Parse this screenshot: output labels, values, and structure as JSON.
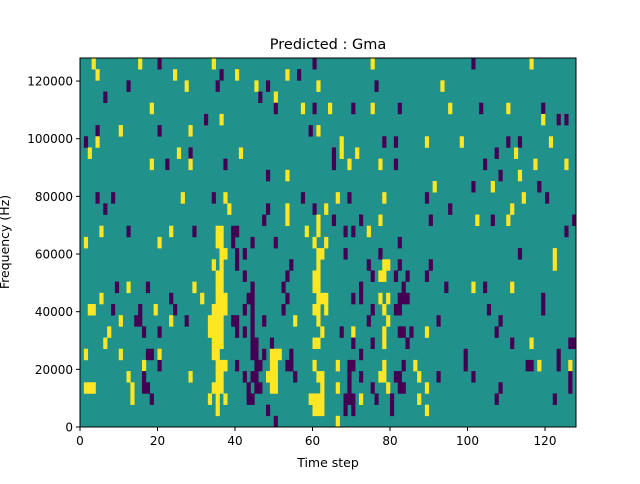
{
  "chart_data": {
    "type": "heatmap",
    "title": "Predicted : Gma",
    "xlabel": "Time step",
    "ylabel": "Frequency (Hz)",
    "xlim": [
      0,
      128
    ],
    "ylim": [
      0,
      128000
    ],
    "x_ticks": [
      0,
      20,
      40,
      60,
      80,
      100,
      120
    ],
    "y_ticks": [
      0,
      20000,
      40000,
      60000,
      80000,
      100000,
      120000
    ],
    "x_tick_labels": [
      "0",
      "20",
      "40",
      "60",
      "80",
      "100",
      "120"
    ],
    "y_tick_labels": [
      "0",
      "20000",
      "40000",
      "60000",
      "80000",
      "100000",
      "120000"
    ],
    "columns": 128,
    "colors": {
      "low": "#440154",
      "mid": "#21918c",
      "high": "#fde725"
    },
    "value_legend": {
      "p": -1,
      "default": 0,
      "y": 1
    },
    "rows_top_to_bottom": [
      "3y 15y 20p 34y 60p 75y 101p 116y",
      "4y 24y 36p 40y 53y 56p",
      "12p 27y 35p 45y 48p 61y 76p 93y",
      "6p 46p 50y",
      "18y 50p 57y 60p 64y 70p 75y 82p 95y 103p 110y 119p",
      "32p 36y 119y 123p 125p",
      "4p 10y 20p 28y 59p 61y",
      "1p 4y 67y 78p 81p 89y 98y 110p 113p 121y",
      "2y 25y 28p 41y 65p 67y 71y 107p 112y",
      "18y 22p 28y 37p 65p 69y 77y 81p 104p 117y 125y",
      "48p 53y 108p 113y",
      "91y 101p 106y 118p",
      "4p 8p 26y 34p 37y 57p 66y 69p 78y 89p 114y 120p",
      "6p 38y 48p 53y 60p 63y 95p 111y",
      "47p 53y 61y 65p 72p 77y 90p 102y 106p 110y 127p",
      "5y 12p 23y 29p 35-36y 39-40p 58y 61y 68p 70p 74y 125p",
      "1y 20y 35-36y 39p 44p 50p 60y 63y 82p",
      "36-37y 40p 42p 61-62y 68p 77p 113p 122y",
      "34y 36y 40p 54p 61y 74p 78-79y 82p 90p 122y",
      "35-36y 42p 53p 60-61y 75p 77-78y 81p 84p 89p",
      "9p 12y 17p 29y 35-36y 44p 52p 60-61y 72p 83p 94p 101y 104p 111y",
      "5y 23p 31y 35-37y 43-44p 53p 61-63y 70p 72p 77y 79y 82-84p 119p",
      "2-3y 8p 15p 19y 24p 34-37y 42p 44p 52p 60-61y 63y 75p 78y 81-82p 105p 119p",
      "10y 14-15p 23y 27p 33-36y 39-40p 44p 47p 55y 61y 74p 79y 92p 108p",
      "7y 16p 20p 33-36y 40p 42p 44p 62y 67p 70y 78y 82-83p 85p 89y 107p",
      "6y 34-36y 44-45p 49p 60-61y 70p 75p 78y 84p 111p 116y 126-127p",
      "1y 10y 17-18p 20y 34-35y 44-45p 47p 49-51y 54p 72p 99p 123p",
      "16y 20p 35-37y 40p 45-46p 49-50y 53-54p 60y 66y 69-70p 78y 83p 86y 99p 115-116p 118y 123p 126y",
      "12y 16p 28y 35-36y 42p 44-45p 48y 49-50y 55p 61-62y 69p 72p 77-78y 81-82p 87y 92p 101p 126p",
      "1-3y 13y 16-17p 34-36y 43p 45-46p 49-50y 62y 66y 69p 75p 79y 82-83p 89y 108p 126p",
      "13y 18p 33y 35y 37y 43-44p 59-62y 68-70p 72y 76p 80p 87y 107p 122p",
      "35y 48p 60-62y 68p 70p 80p 89y",
      "50p 66y"
    ]
  }
}
